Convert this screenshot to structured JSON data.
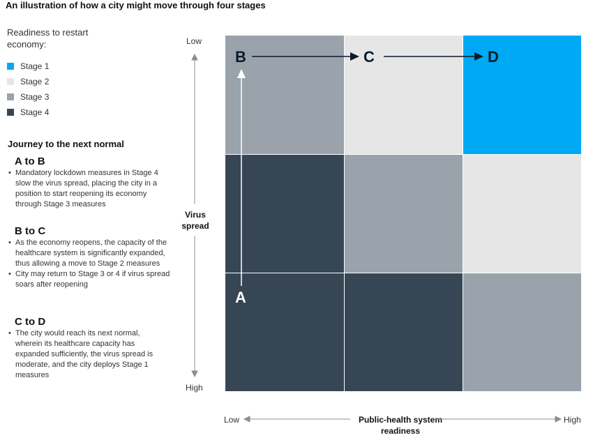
{
  "title": "An illustration of how a city might move through four stages",
  "legend": {
    "title": "Readiness to restart economy:",
    "items": [
      {
        "label": "Stage 1",
        "color": "#00a9f4"
      },
      {
        "label": "Stage 2",
        "color": "#e6e6e6"
      },
      {
        "label": "Stage 3",
        "color": "#9aa3ab"
      },
      {
        "label": "Stage 4",
        "color": "#374655"
      }
    ]
  },
  "journey": {
    "title": "Journey to the next normal",
    "steps": [
      {
        "title": "A to B",
        "bullets": [
          "Mandatory lockdown measures in Stage 4 slow the virus spread, placing the city in a position to start reopening its economy through Stage 3 measures"
        ]
      },
      {
        "title": "B to C",
        "bullets": [
          "As the economy reopens, the capacity of the healthcare system is significantly expanded, thus allowing a move to Stage 2 measures",
          "City may return to Stage 3 or 4 if virus spread soars after reopening"
        ]
      },
      {
        "title": "C to D",
        "bullets": [
          "The city would reach its next normal, wherein its healthcare capacity has expanded sufficiently, the virus spread is moderate, and the city deploys Stage 1 measures"
        ]
      }
    ]
  },
  "y_axis": {
    "label": "Virus spread",
    "top": "Low",
    "bottom": "High"
  },
  "x_axis": {
    "label": "Public-health system readiness",
    "left": "Low",
    "right": "High"
  },
  "grid": [
    [
      "Stage 3",
      "Stage 2",
      "Stage 1"
    ],
    [
      "Stage 4",
      "Stage 3",
      "Stage 2"
    ],
    [
      "Stage 4",
      "Stage 4",
      "Stage 3"
    ]
  ],
  "nodes": {
    "A": "A",
    "B": "B",
    "C": "C",
    "D": "D"
  }
}
